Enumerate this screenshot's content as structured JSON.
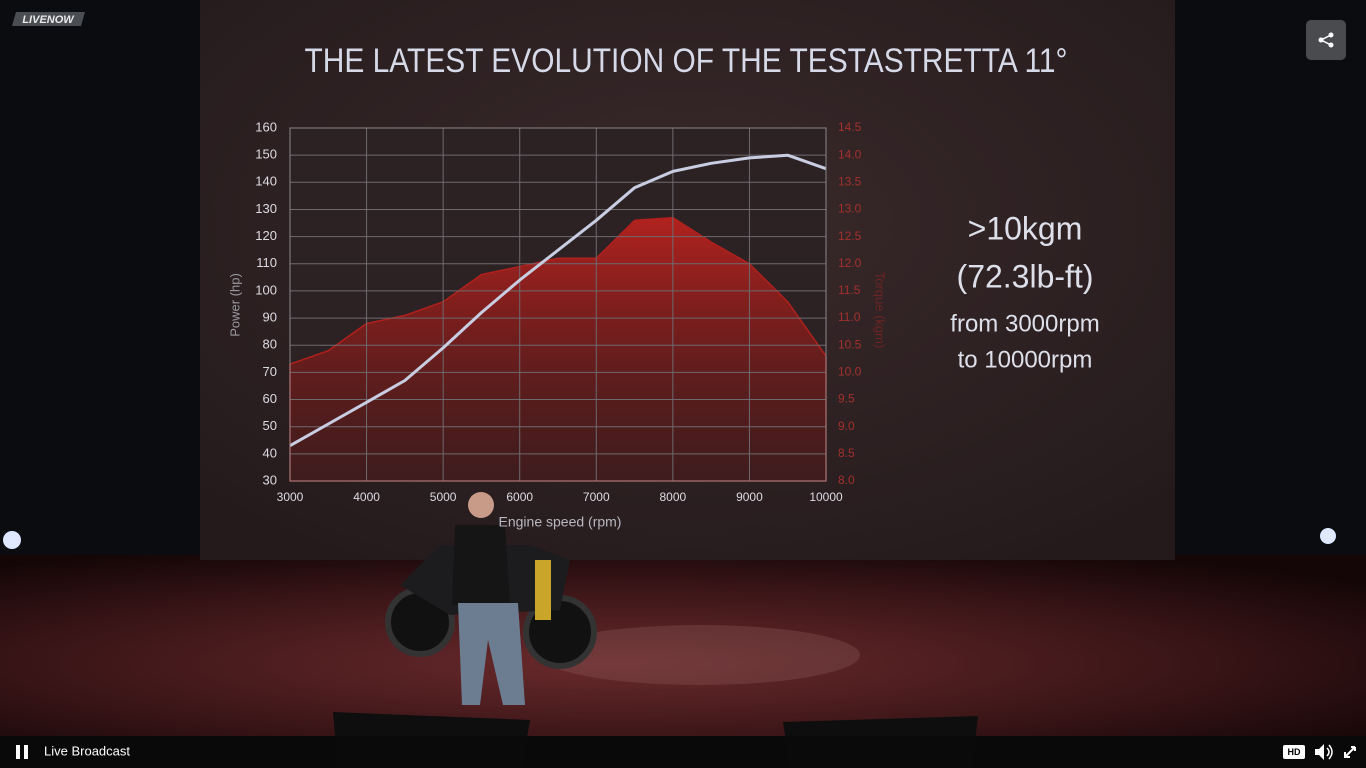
{
  "player": {
    "logo": "LIVENOW",
    "status": "Live Broadcast",
    "quality": "HD"
  },
  "slide": {
    "title": "THE LATEST EVOLUTION OF THE TESTASTRETTA 11°",
    "notes": [
      ">10kgm",
      "(72.3lb-ft)",
      "from 3000rpm",
      "to 10000rpm"
    ]
  },
  "chart_data": {
    "type": "line",
    "x_label": "Engine speed (rpm)",
    "y_label": "Power (hp)",
    "y2_label": "Torque (kgm)",
    "x": [
      3000,
      3500,
      4000,
      4500,
      5000,
      5500,
      6000,
      6500,
      7000,
      7500,
      8000,
      8500,
      9000,
      9500,
      10000
    ],
    "series": [
      {
        "color": "#b0201c",
        "axis": "y2",
        "area": true,
        "values": [
          10.15,
          10.4,
          10.9,
          11.05,
          11.3,
          11.8,
          11.95,
          12.1,
          12.1,
          12.8,
          12.85,
          12.4,
          12.0,
          11.3,
          10.3
        ]
      },
      {
        "color": "#c9cde2",
        "area": false,
        "values": [
          43,
          51,
          59,
          67,
          79,
          92,
          104,
          115,
          126,
          138,
          144,
          147,
          149,
          150,
          145
        ]
      }
    ],
    "xlim": [
      3000,
      10000
    ],
    "xticks": [
      3000,
      4000,
      5000,
      6000,
      7000,
      8000,
      9000,
      10000
    ],
    "ylim": [
      30,
      160
    ],
    "yticks": [
      30,
      40,
      50,
      60,
      70,
      80,
      90,
      100,
      110,
      120,
      130,
      140,
      150,
      160
    ],
    "y2lim": [
      8,
      14.5
    ],
    "y2ticks": [
      {
        "value": 8,
        "label": "8.0"
      },
      8.5,
      {
        "value": 9,
        "label": "9.0"
      },
      9.5,
      {
        "value": 10,
        "label": "10.0"
      },
      10.5,
      {
        "value": 11,
        "label": "11.0"
      },
      11.5,
      {
        "value": 12,
        "label": "12.0"
      },
      12.5,
      {
        "value": 13,
        "label": "13.0"
      },
      13.5,
      {
        "value": 14,
        "label": "14.0"
      },
      14.5
    ],
    "grid": true
  }
}
